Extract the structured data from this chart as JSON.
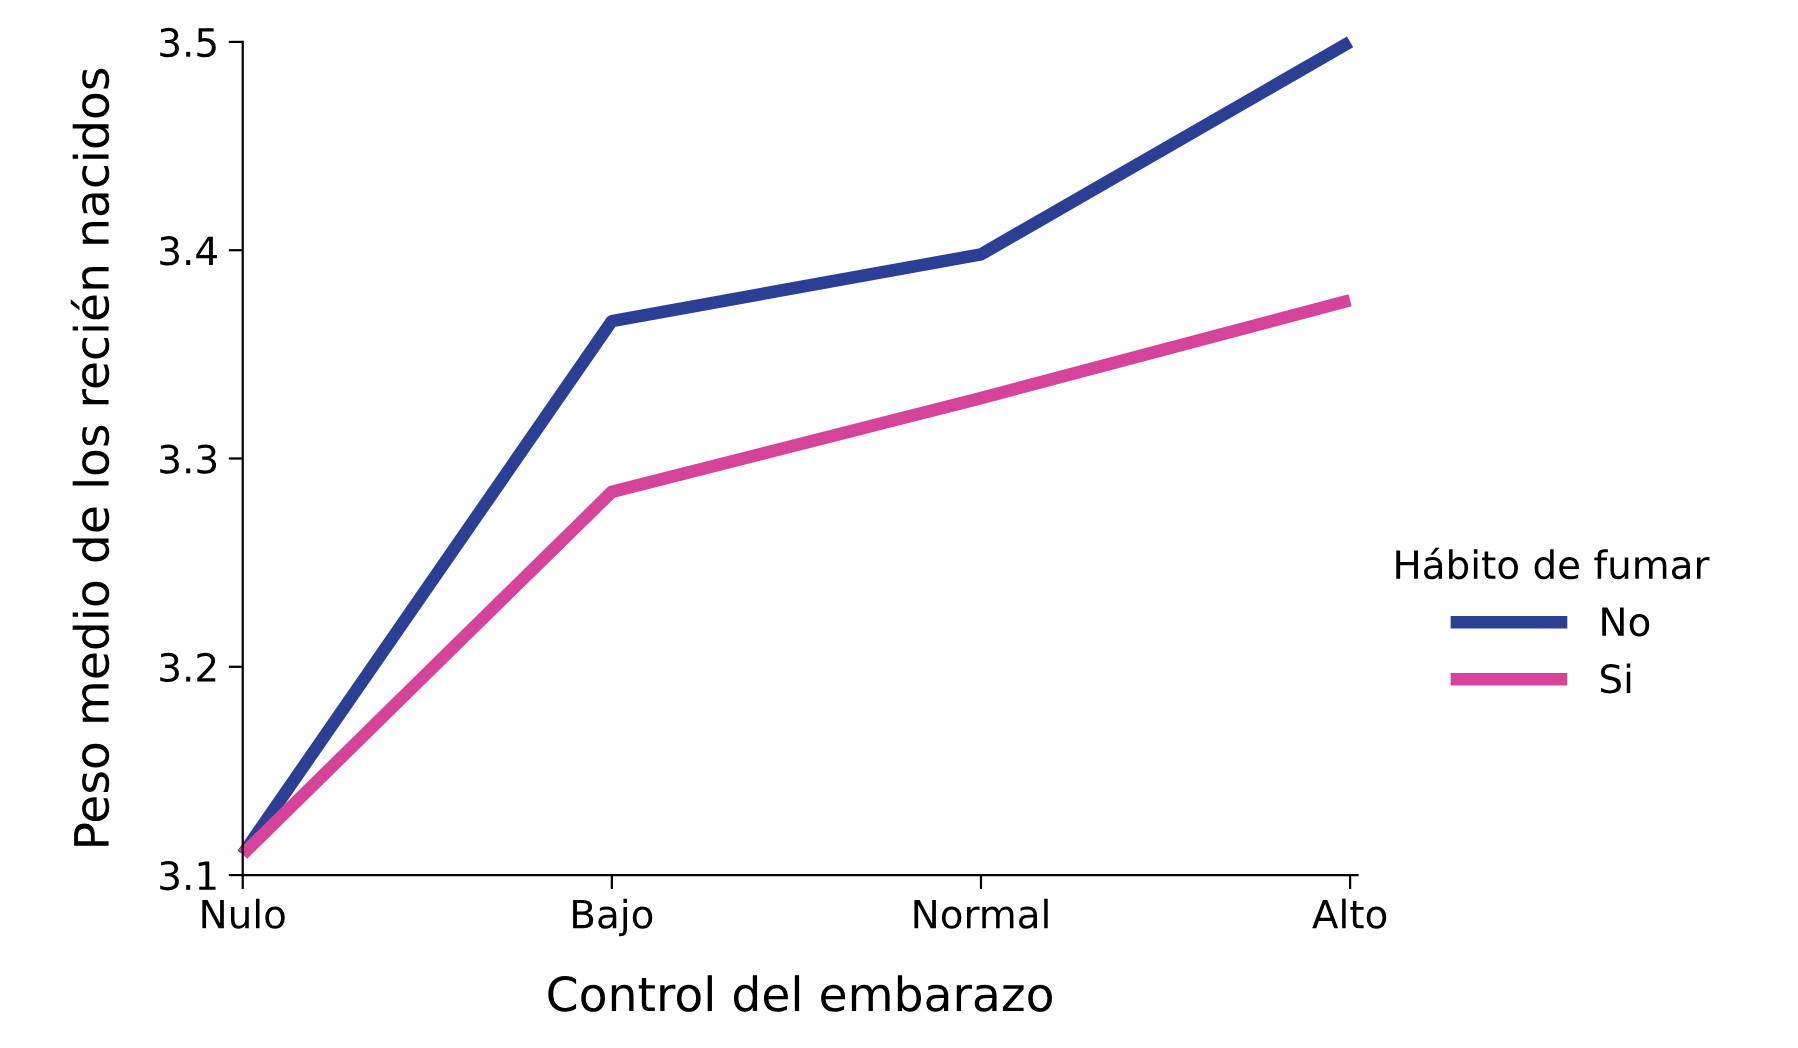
{
  "chart_data": {
    "type": "line",
    "xlabel": "Control del embarazo",
    "ylabel": "Peso medio de los recién nacidos",
    "categories": [
      "Nulo",
      "Bajo",
      "Normal",
      "Alto"
    ],
    "series": [
      {
        "name": "No",
        "color": "#2b3f95",
        "values": [
          3.11,
          3.366,
          3.398,
          3.5
        ]
      },
      {
        "name": "Si",
        "color": "#d5449a",
        "values": [
          3.11,
          3.284,
          3.329,
          3.376
        ]
      }
    ],
    "ylim": [
      3.1,
      3.5
    ],
    "yticks": [
      3.1,
      3.2,
      3.3,
      3.4,
      3.5
    ],
    "legend": "right",
    "legend_title": "Hábito de fumar",
    "grid": false,
    "marker": "none",
    "line_style": "solid"
  }
}
